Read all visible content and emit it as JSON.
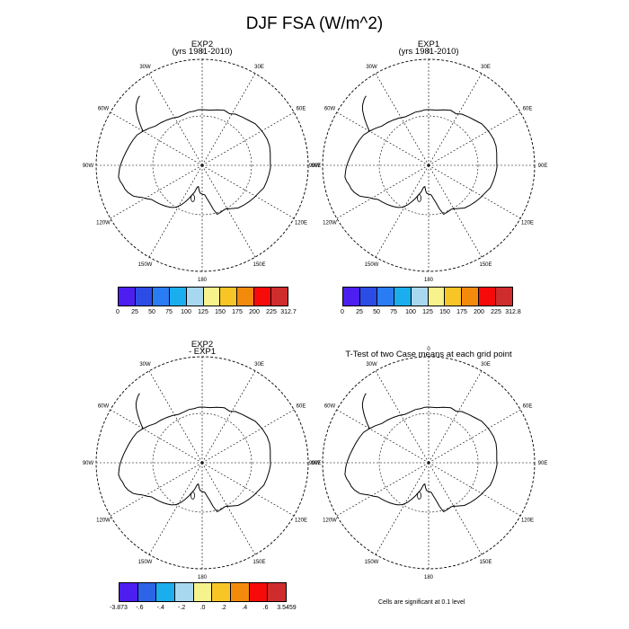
{
  "title": "DJF FSA (W/m^2)",
  "panels": [
    {
      "title": "EXP2",
      "subtitle": "(yrs 1981-2010)"
    },
    {
      "title": "EXP1",
      "subtitle": "(yrs 1981-2010)"
    },
    {
      "title": "EXP2",
      "subtitle": "- EXP1"
    },
    {
      "title": "T-Test of two Case means at each grid point",
      "subtitle": ""
    }
  ],
  "longitude_labels": [
    "0",
    "30E",
    "60E",
    "90E",
    "120E",
    "150E",
    "180",
    "150W",
    "120W",
    "90W",
    "60W",
    "30W"
  ],
  "colorbars": [
    {
      "labels": [
        "0",
        "25",
        "50",
        "75",
        "100",
        "125",
        "150",
        "175",
        "200",
        "225",
        "312.7"
      ],
      "colors": [
        "#4d1ef0",
        "#2c4ce6",
        "#2a7cf5",
        "#1aaeee",
        "#a8d7f0",
        "#f6f28c",
        "#f7c526",
        "#f48a0c",
        "#f60a0a",
        "#cf2d2d"
      ]
    },
    {
      "labels": [
        "0",
        "25",
        "50",
        "75",
        "100",
        "125",
        "150",
        "175",
        "200",
        "225",
        "312.8"
      ],
      "colors": [
        "#4d1ef0",
        "#2c4ce6",
        "#2a7cf5",
        "#1aaeee",
        "#a8d7f0",
        "#f6f28c",
        "#f7c526",
        "#f48a0c",
        "#f60a0a",
        "#cf2d2d"
      ]
    },
    {
      "labels": [
        "-3.873",
        "-.6",
        "-.4",
        "-.2",
        ".0",
        ".2",
        ".4",
        ".6",
        "3.5459"
      ],
      "colors": [
        "#4d1ef0",
        "#2c64e8",
        "#1aaeee",
        "#a8d7f0",
        "#f6f28c",
        "#f7c526",
        "#f48a0c",
        "#f60a0a",
        "#cf2d2d"
      ]
    }
  ],
  "footnote": "Cells are significant at 0.1 level"
}
